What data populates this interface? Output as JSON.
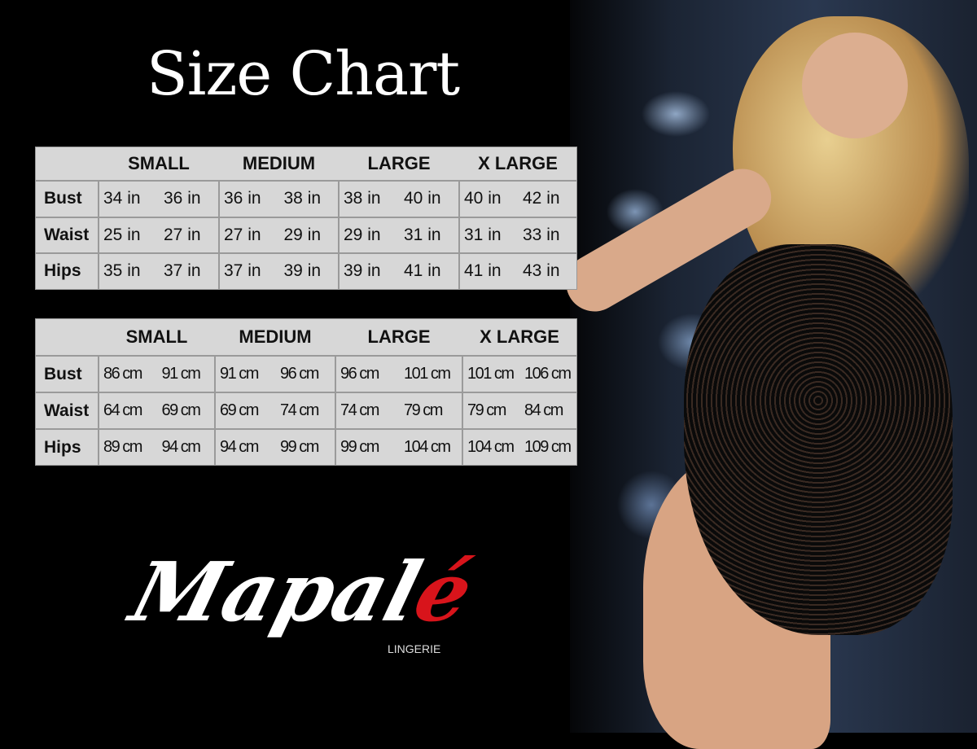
{
  "title": "Size Chart",
  "brand": {
    "name": "Mapalé",
    "name_main": "Mapal",
    "name_accent": "é",
    "tagline": "LINGERIE",
    "accent_color": "#d8141b"
  },
  "colors": {
    "background": "#000000",
    "table_bg": "#d7d7d7",
    "grid": "#9a9a9a"
  },
  "tables": [
    {
      "unit": "in",
      "headers": [
        "SMALL",
        "MEDIUM",
        "LARGE",
        "X LARGE"
      ],
      "rows": [
        {
          "label": "Bust",
          "values": [
            "34 in",
            "36 in",
            "36 in",
            "38 in",
            "38 in",
            "40 in",
            "40 in",
            "42 in"
          ]
        },
        {
          "label": "Waist",
          "values": [
            "25 in",
            "27 in",
            "27 in",
            "29 in",
            "29 in",
            "31 in",
            "31 in",
            "33 in"
          ]
        },
        {
          "label": "Hips",
          "values": [
            "35 in",
            "37 in",
            "37 in",
            "39 in",
            "39 in",
            "41 in",
            "41 in",
            "43 in"
          ]
        }
      ]
    },
    {
      "unit": "cm",
      "headers": [
        "SMALL",
        "MEDIUM",
        "LARGE",
        "X LARGE"
      ],
      "rows": [
        {
          "label": "Bust",
          "values": [
            "86 cm",
            "91 cm",
            "91 cm",
            "96 cm",
            "96 cm",
            "101 cm",
            "101 cm",
            "106 cm"
          ]
        },
        {
          "label": "Waist",
          "values": [
            "64 cm",
            "69 cm",
            "69 cm",
            "74 cm",
            "74 cm",
            "79  cm",
            "79 cm",
            "84 cm"
          ]
        },
        {
          "label": "Hips",
          "values": [
            "89 cm",
            "94 cm",
            "94 cm",
            "99 cm",
            "99 cm",
            "104 cm",
            "104 cm",
            "109 cm"
          ]
        }
      ]
    }
  ]
}
